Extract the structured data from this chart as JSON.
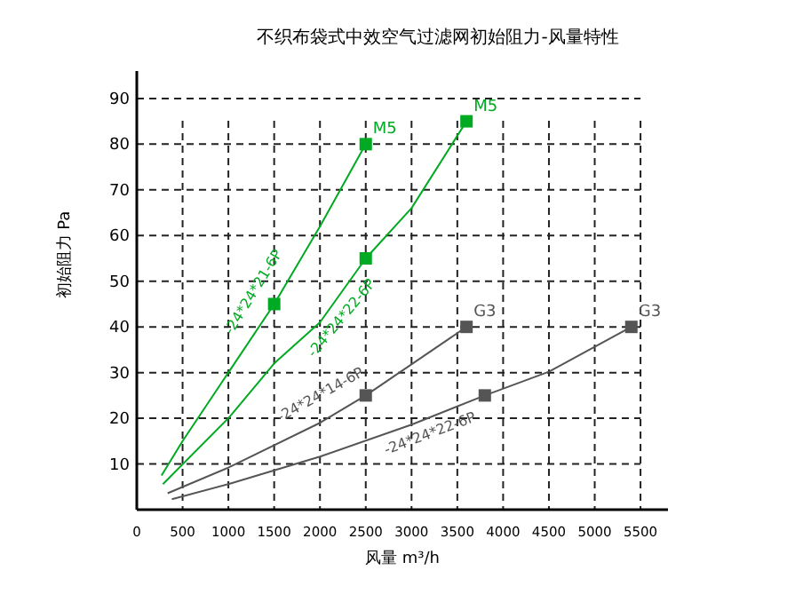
{
  "chart_data": {
    "type": "line",
    "title": "不织布袋式中效空气过滤网初始阻力-风量特性",
    "xlabel": "风量  m³/h",
    "ylabel": "初始阻力 Pa",
    "xlim": [
      0,
      5800
    ],
    "ylim": [
      0,
      96
    ],
    "xticks": [
      0,
      500,
      1000,
      1500,
      2000,
      2500,
      3000,
      3500,
      4000,
      4500,
      5000,
      5500
    ],
    "yticks": [
      {
        "value": 0,
        "label": null
      },
      10,
      20,
      30,
      40,
      50,
      60,
      70,
      80,
      90
    ],
    "grid": true,
    "marker": "none",
    "line_style": "solid",
    "series": [
      {
        "name": "-24*24*21-6P",
        "color": "#00aa22",
        "x": [
          270,
          500,
          1000,
          1500,
          2000,
          2500
        ],
        "values": [
          7.5,
          15,
          30,
          45,
          62,
          80
        ]
      },
      {
        "name": "-24*24*22-6P",
        "color": "#00aa22",
        "x": [
          285,
          1000,
          1500,
          2000,
          2500,
          3000,
          3600
        ],
        "values": [
          5.6,
          20,
          32,
          41,
          55,
          66,
          85
        ]
      },
      {
        "name": "-24*24*14-6P",
        "color": "#555555",
        "x": [
          337,
          1000,
          2000,
          2500,
          3600
        ],
        "values": [
          3.6,
          9.2,
          19,
          25,
          40
        ]
      },
      {
        "name": "-24*24*22-6P",
        "color": "#555555",
        "x": [
          383,
          1000,
          2000,
          3000,
          3800,
          4500,
          5400
        ],
        "values": [
          2.3,
          5.6,
          11.6,
          18.6,
          25,
          30.2,
          40
        ]
      },
      {
        "type": "scatter",
        "marker": "square",
        "color": "#00aa22",
        "x": [
          1500,
          2500,
          2500,
          3600
        ],
        "values": [
          45,
          80,
          55,
          85
        ]
      },
      {
        "type": "scatter",
        "marker": "square",
        "color": "#555555",
        "x": [
          2500,
          3600,
          3800,
          5400
        ],
        "values": [
          25,
          40,
          25,
          40
        ]
      }
    ],
    "annotations": [
      {
        "text": "M5",
        "x": 2500,
        "y": 80
      },
      {
        "text": "M5",
        "x": 3600,
        "y": 85
      },
      {
        "text": "G3",
        "x": 3600,
        "y": 40
      },
      {
        "text": "G3",
        "x": 5400,
        "y": 40
      }
    ]
  }
}
